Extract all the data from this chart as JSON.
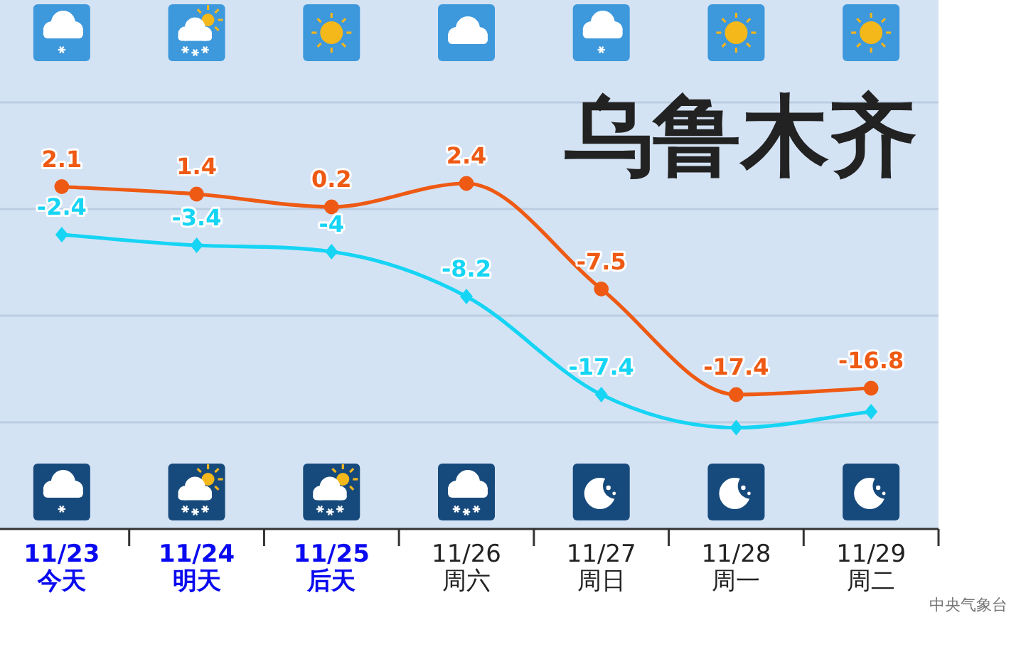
{
  "chart_data": {
    "type": "line",
    "title": "乌鲁木齐",
    "categories": [
      "11/23\n今天",
      "11/24\n明天",
      "11/25\n后天",
      "11/26\n周六",
      "11/27\n周日",
      "11/28\n周一",
      "11/29\n周二"
    ],
    "series": [
      {
        "color": "#ee5a14",
        "marker": "circle",
        "values": [
          2.1,
          1.4,
          0.2,
          2.4,
          -7.5,
          -17.4,
          -16.8
        ],
        "value_labels": [
          "2.1",
          "1.4",
          "0.2",
          "2.4",
          "-7.5",
          "-17.4",
          "-16.8"
        ]
      },
      {
        "color": "#16d4f4",
        "marker": "diamond",
        "values": [
          -2.4,
          -3.4,
          -4,
          -8.2,
          -17.4,
          -20.5,
          -19
        ],
        "value_labels": [
          "-2.4",
          "-3.4",
          "-4",
          "-8.2",
          "-17.4",
          null,
          null
        ]
      }
    ],
    "ylim": [
      -30,
      20
    ],
    "yticks": [
      {
        "value": 10,
        "label": null
      },
      {
        "value": 0,
        "label": null
      },
      {
        "value": -10,
        "label": null
      },
      {
        "value": -20,
        "label": null
      }
    ],
    "grid": "y",
    "tick_labels": "x",
    "annotations": [
      "中央气象台"
    ]
  }
}
